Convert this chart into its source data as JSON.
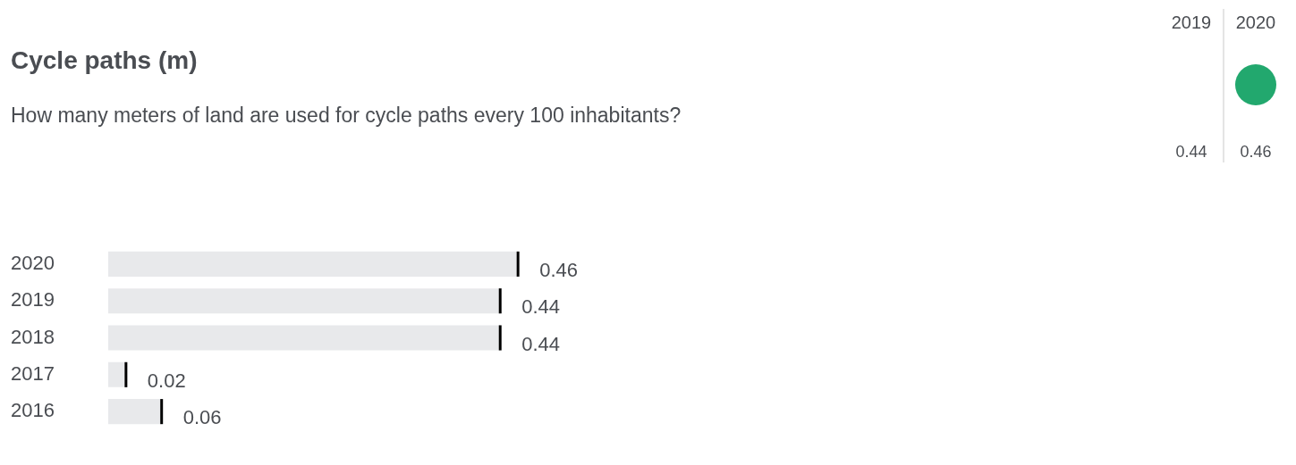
{
  "chart_data": [
    {
      "type": "bar",
      "orientation": "horizontal",
      "title": "Cycle paths (m)",
      "subtitle": "How many meters of land are used for cycle paths every 100 inhabitants?",
      "categories": [
        "2020",
        "2019",
        "2018",
        "2017",
        "2016"
      ],
      "values": [
        0.46,
        0.44,
        0.44,
        0.02,
        0.06
      ],
      "color": "#e8e9eb",
      "data_labels": true,
      "tick_labels": "y"
    },
    {
      "type": "other",
      "categories": [
        "2019",
        "2020"
      ],
      "values": [
        0.44,
        0.46
      ],
      "colors": [
        null,
        "#22a86e"
      ],
      "data_labels": true
    }
  ]
}
